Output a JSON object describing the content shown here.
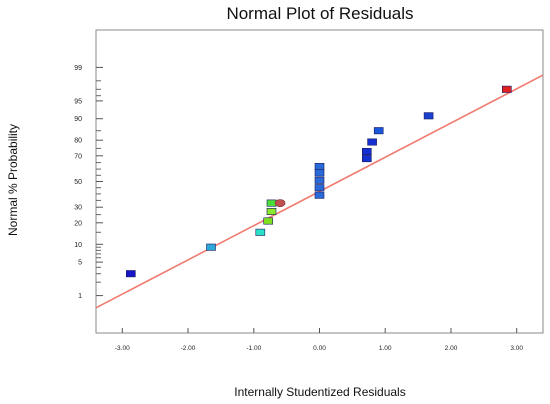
{
  "chart_data": {
    "type": "scatter",
    "title": "Normal Plot of Residuals",
    "xlabel": "Internally Studentized Residuals",
    "ylabel": "Normal % Probability",
    "x_ticks": [
      -3,
      -2,
      -1,
      0,
      1,
      2,
      3
    ],
    "x_tick_labels": [
      "-3.00",
      "-2.00",
      "-1.00",
      "0.00",
      "1.00",
      "2.00",
      "3.00"
    ],
    "xlim": [
      -3.4,
      3.4
    ],
    "y_scale": "normal-probability",
    "y_labeled_ticks": [
      1,
      5,
      10,
      20,
      30,
      50,
      70,
      80,
      90,
      95,
      99
    ],
    "y_minor_ticks": [
      2,
      3,
      4,
      6,
      7,
      8,
      9,
      15,
      25,
      35,
      40,
      45,
      55,
      60,
      65,
      75,
      85,
      96,
      97,
      98
    ],
    "ylim_probability": [
      0.1,
      99.9
    ],
    "reference_line": {
      "color": "#f07b70",
      "from": [
        -3.4,
        0.5
      ],
      "to": [
        3.4,
        98.5
      ]
    },
    "points": [
      {
        "x": -2.87,
        "y": 3,
        "color": "#1616c8",
        "shape": "square"
      },
      {
        "x": -1.65,
        "y": 9,
        "color": "#2ea8d8",
        "shape": "square"
      },
      {
        "x": -0.9,
        "y": 15,
        "color": "#29e0c8",
        "shape": "square"
      },
      {
        "x": -0.78,
        "y": 21,
        "color": "#7ee01e",
        "shape": "square"
      },
      {
        "x": -0.73,
        "y": 27,
        "color": "#8be82a",
        "shape": "square"
      },
      {
        "x": -0.73,
        "y": 33,
        "color": "#4cdd3a",
        "shape": "square"
      },
      {
        "x": -0.6,
        "y": 33,
        "color": "#c05050",
        "shape": "circle"
      },
      {
        "x": 0,
        "y": 39,
        "color": "#2a6ad8",
        "shape": "square"
      },
      {
        "x": 0,
        "y": 45,
        "color": "#2a6ad8",
        "shape": "square"
      },
      {
        "x": 0,
        "y": 51,
        "color": "#2a6ad8",
        "shape": "square"
      },
      {
        "x": 0,
        "y": 57,
        "color": "#2a6ad8",
        "shape": "square"
      },
      {
        "x": 0,
        "y": 62,
        "color": "#2a6ad8",
        "shape": "square"
      },
      {
        "x": 0.72,
        "y": 68,
        "color": "#1530d0",
        "shape": "square"
      },
      {
        "x": 0.72,
        "y": 73,
        "color": "#1530d0",
        "shape": "square"
      },
      {
        "x": 0.8,
        "y": 79,
        "color": "#1530d0",
        "shape": "square"
      },
      {
        "x": 0.9,
        "y": 85,
        "color": "#1a56d8",
        "shape": "square"
      },
      {
        "x": 1.66,
        "y": 91,
        "color": "#1a40d0",
        "shape": "square"
      },
      {
        "x": 2.85,
        "y": 97,
        "color": "#e02020",
        "shape": "square"
      }
    ]
  }
}
